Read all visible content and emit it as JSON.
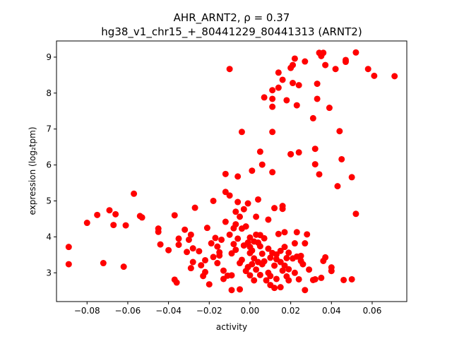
{
  "chart_data": {
    "type": "scatter",
    "title": "AHR_ARNT2, ρ = 0.37",
    "subtitle": "hg38_v1_chr15_+_80441229_80441313 (ARNT2)",
    "xlabel": "activity",
    "ylabel": "expression (log₂tpm)",
    "xlim": [
      -0.095,
      0.077
    ],
    "ylim": [
      2.2,
      9.45
    ],
    "xticks": [
      -0.08,
      -0.06,
      -0.04,
      -0.02,
      0.0,
      0.02,
      0.04,
      0.06
    ],
    "xtick_labels": [
      "−0.08",
      "−0.06",
      "−0.04",
      "−0.02",
      "0.00",
      "0.02",
      "0.04",
      "0.06"
    ],
    "yticks": [
      3,
      4,
      5,
      6,
      7,
      8,
      9
    ],
    "ytick_labels": [
      "3",
      "4",
      "5",
      "6",
      "7",
      "8",
      "9"
    ],
    "grid": false,
    "marker_color": "#ff0000",
    "points": [
      [
        -0.089,
        3.72
      ],
      [
        -0.089,
        3.24
      ],
      [
        -0.08,
        4.39
      ],
      [
        -0.075,
        4.61
      ],
      [
        -0.072,
        3.27
      ],
      [
        -0.069,
        4.74
      ],
      [
        -0.067,
        4.33
      ],
      [
        -0.066,
        4.63
      ],
      [
        -0.062,
        3.17
      ],
      [
        -0.061,
        4.32
      ],
      [
        -0.057,
        5.2
      ],
      [
        -0.054,
        4.58
      ],
      [
        -0.053,
        4.54
      ],
      [
        -0.045,
        4.23
      ],
      [
        -0.045,
        4.14
      ],
      [
        -0.044,
        3.79
      ],
      [
        -0.04,
        3.63
      ],
      [
        -0.037,
        4.6
      ],
      [
        -0.037,
        2.81
      ],
      [
        -0.036,
        2.73
      ],
      [
        -0.035,
        3.95
      ],
      [
        -0.035,
        3.78
      ],
      [
        -0.032,
        4.2
      ],
      [
        -0.031,
        3.58
      ],
      [
        -0.03,
        3.92
      ],
      [
        -0.029,
        3.13
      ],
      [
        -0.029,
        4.06
      ],
      [
        -0.028,
        3.68
      ],
      [
        -0.028,
        3.3
      ],
      [
        -0.027,
        4.81
      ],
      [
        -0.025,
        3.6
      ],
      [
        -0.024,
        3.21
      ],
      [
        -0.023,
        2.91
      ],
      [
        -0.022,
        3.35
      ],
      [
        -0.022,
        3.02
      ],
      [
        -0.021,
        4.25
      ],
      [
        -0.02,
        2.68
      ],
      [
        -0.019,
        3.82
      ],
      [
        -0.018,
        3.44
      ],
      [
        -0.018,
        5.0
      ],
      [
        -0.017,
        3.97
      ],
      [
        -0.016,
        3.73
      ],
      [
        -0.016,
        3.27
      ],
      [
        -0.015,
        3.48
      ],
      [
        -0.015,
        3.57
      ],
      [
        -0.014,
        3.92
      ],
      [
        -0.013,
        3.06
      ],
      [
        -0.013,
        2.83
      ],
      [
        -0.012,
        5.75
      ],
      [
        -0.012,
        5.25
      ],
      [
        -0.012,
        4.42
      ],
      [
        -0.011,
        2.92
      ],
      [
        -0.01,
        8.67
      ],
      [
        -0.01,
        5.15
      ],
      [
        -0.01,
        4.06
      ],
      [
        -0.009,
        3.54
      ],
      [
        -0.009,
        2.52
      ],
      [
        -0.009,
        2.93
      ],
      [
        -0.008,
        4.24
      ],
      [
        -0.008,
        3.8
      ],
      [
        -0.007,
        4.7
      ],
      [
        -0.007,
        4.35
      ],
      [
        -0.007,
        3.64
      ],
      [
        -0.006,
        3.95
      ],
      [
        -0.006,
        5.68
      ],
      [
        -0.006,
        4.97
      ],
      [
        -0.005,
        4.56
      ],
      [
        -0.005,
        3.27
      ],
      [
        -0.005,
        2.54
      ],
      [
        -0.004,
        6.92
      ],
      [
        -0.004,
        4.23
      ],
      [
        -0.004,
        3.36
      ],
      [
        -0.003,
        4.77
      ],
      [
        -0.003,
        3.76
      ],
      [
        -0.002,
        3.05
      ],
      [
        -0.002,
        4.29
      ],
      [
        -0.001,
        4.93
      ],
      [
        -0.001,
        3.84
      ],
      [
        -0.001,
        3.16
      ],
      [
        0.0,
        3.98
      ],
      [
        0.0,
        3.55
      ],
      [
        0.0,
        2.93
      ],
      [
        0.0,
        3.72
      ],
      [
        0.001,
        3.24
      ],
      [
        0.001,
        3.62
      ],
      [
        0.001,
        5.84
      ],
      [
        0.002,
        3.87
      ],
      [
        0.002,
        3.4
      ],
      [
        0.002,
        2.79
      ],
      [
        0.003,
        4.56
      ],
      [
        0.003,
        3.09
      ],
      [
        0.003,
        4.06
      ],
      [
        0.004,
        3.84
      ],
      [
        0.004,
        3.3
      ],
      [
        0.004,
        5.04
      ],
      [
        0.005,
        6.37
      ],
      [
        0.005,
        3.74
      ],
      [
        0.005,
        4.05
      ],
      [
        0.005,
        2.94
      ],
      [
        0.006,
        3.53
      ],
      [
        0.006,
        6.01
      ],
      [
        0.006,
        3.24
      ],
      [
        0.007,
        7.88
      ],
      [
        0.007,
        3.96
      ],
      [
        0.007,
        3.32
      ],
      [
        0.008,
        2.79
      ],
      [
        0.009,
        4.48
      ],
      [
        0.009,
        3.67
      ],
      [
        0.009,
        3.0
      ],
      [
        0.01,
        3.42
      ],
      [
        0.01,
        2.91
      ],
      [
        0.01,
        2.66
      ],
      [
        0.011,
        7.84
      ],
      [
        0.011,
        8.08
      ],
      [
        0.011,
        7.62
      ],
      [
        0.011,
        6.92
      ],
      [
        0.011,
        5.8
      ],
      [
        0.011,
        3.55
      ],
      [
        0.012,
        4.8
      ],
      [
        0.012,
        3.2
      ],
      [
        0.012,
        2.58
      ],
      [
        0.013,
        3.51
      ],
      [
        0.013,
        2.83
      ],
      [
        0.013,
        3.38
      ],
      [
        0.014,
        8.15
      ],
      [
        0.014,
        8.57
      ],
      [
        0.014,
        4.08
      ],
      [
        0.015,
        3.61
      ],
      [
        0.015,
        2.6
      ],
      [
        0.015,
        3.3
      ],
      [
        0.016,
        8.37
      ],
      [
        0.016,
        4.86
      ],
      [
        0.016,
        4.78
      ],
      [
        0.016,
        3.06
      ],
      [
        0.017,
        4.13
      ],
      [
        0.017,
        3.72
      ],
      [
        0.017,
        3.2
      ],
      [
        0.018,
        2.9
      ],
      [
        0.018,
        3.41
      ],
      [
        0.018,
        7.8
      ],
      [
        0.019,
        3.56
      ],
      [
        0.019,
        3.1
      ],
      [
        0.019,
        2.79
      ],
      [
        0.02,
        8.7
      ],
      [
        0.02,
        6.3
      ],
      [
        0.02,
        6.3
      ],
      [
        0.021,
        8.78
      ],
      [
        0.021,
        8.28
      ],
      [
        0.021,
        3.4
      ],
      [
        0.022,
        8.96
      ],
      [
        0.022,
        3.82
      ],
      [
        0.022,
        3.0
      ],
      [
        0.023,
        7.66
      ],
      [
        0.023,
        4.13
      ],
      [
        0.023,
        3.45
      ],
      [
        0.024,
        8.22
      ],
      [
        0.024,
        6.35
      ],
      [
        0.024,
        2.82
      ],
      [
        0.025,
        3.47
      ],
      [
        0.025,
        3.33
      ],
      [
        0.026,
        3.24
      ],
      [
        0.027,
        8.88
      ],
      [
        0.027,
        3.82
      ],
      [
        0.027,
        2.52
      ],
      [
        0.028,
        4.07
      ],
      [
        0.029,
        3.09
      ],
      [
        0.031,
        7.3
      ],
      [
        0.031,
        2.8
      ],
      [
        0.032,
        6.02
      ],
      [
        0.032,
        6.45
      ],
      [
        0.032,
        2.82
      ],
      [
        0.033,
        7.84
      ],
      [
        0.033,
        8.26
      ],
      [
        0.034,
        9.12
      ],
      [
        0.034,
        5.74
      ],
      [
        0.035,
        2.86
      ],
      [
        0.035,
        9.03
      ],
      [
        0.036,
        9.12
      ],
      [
        0.036,
        3.33
      ],
      [
        0.037,
        8.78
      ],
      [
        0.037,
        3.43
      ],
      [
        0.039,
        7.59
      ],
      [
        0.04,
        3.15
      ],
      [
        0.04,
        3.05
      ],
      [
        0.042,
        8.67
      ],
      [
        0.043,
        5.41
      ],
      [
        0.044,
        6.94
      ],
      [
        0.045,
        6.16
      ],
      [
        0.046,
        2.8
      ],
      [
        0.047,
        8.87
      ],
      [
        0.047,
        8.92
      ],
      [
        0.05,
        5.66
      ],
      [
        0.05,
        2.82
      ],
      [
        0.052,
        9.13
      ],
      [
        0.052,
        4.64
      ],
      [
        0.058,
        8.67
      ],
      [
        0.061,
        8.48
      ],
      [
        0.071,
        8.47
      ]
    ]
  }
}
